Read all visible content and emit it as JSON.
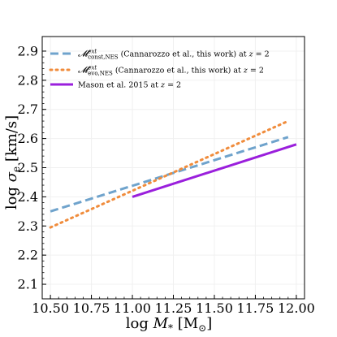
{
  "chart_data": {
    "type": "line",
    "xlabel": "log M_* [M_⊙]",
    "ylabel": "log σ_e [km/s]",
    "xlim": [
      10.45,
      12.05
    ],
    "ylim": [
      2.05,
      2.95
    ],
    "xticks": [
      "10.50",
      "10.75",
      "11.00",
      "11.25",
      "11.50",
      "11.75",
      "12.00"
    ],
    "yticks": [
      "2.1",
      "2.2",
      "2.3",
      "2.4",
      "2.5",
      "2.6",
      "2.7",
      "2.8",
      "2.9"
    ],
    "grid": true,
    "legend_position": "top",
    "series": [
      {
        "name": "M_const,NES^ext (Cannarozzo et al., this work) at z = 2",
        "style": "dashed",
        "color": "#6fa3cc",
        "x": [
          10.5,
          11.95
        ],
        "y": [
          2.35,
          2.605
        ]
      },
      {
        "name": "M_evo,NES^ext (Cannarozzo et al., this work) at z = 2",
        "style": "dotted",
        "color": "#f08c3c",
        "x": [
          10.5,
          11.95
        ],
        "y": [
          2.295,
          2.66
        ]
      },
      {
        "name": "Mason et al. 2015 at z = 2",
        "style": "solid",
        "color": "#9a1fdc",
        "x": [
          11.0,
          12.0
        ],
        "y": [
          2.4,
          2.58
        ]
      }
    ]
  }
}
